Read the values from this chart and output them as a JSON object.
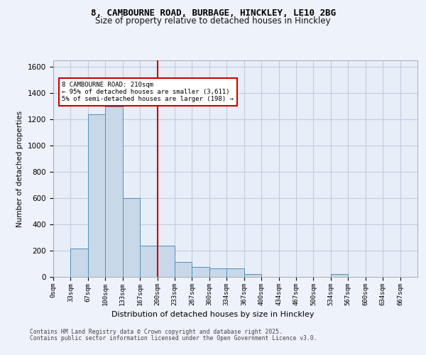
{
  "title_line1": "8, CAMBOURNE ROAD, BURBAGE, HINCKLEY, LE10 2BG",
  "title_line2": "Size of property relative to detached houses in Hinckley",
  "xlabel": "Distribution of detached houses by size in Hinckley",
  "ylabel": "Number of detached properties",
  "bin_labels": [
    "0sqm",
    "33sqm",
    "67sqm",
    "100sqm",
    "133sqm",
    "167sqm",
    "200sqm",
    "233sqm",
    "267sqm",
    "300sqm",
    "334sqm",
    "367sqm",
    "400sqm",
    "434sqm",
    "467sqm",
    "500sqm",
    "534sqm",
    "567sqm",
    "600sqm",
    "634sqm",
    "667sqm"
  ],
  "bar_values": [
    0,
    215,
    1240,
    1300,
    600,
    240,
    240,
    115,
    75,
    65,
    65,
    20,
    0,
    0,
    0,
    0,
    20,
    0,
    0,
    0,
    0
  ],
  "bar_color": "#c8d8e8",
  "bar_edge_color": "#5090b8",
  "vline_x": 6,
  "vline_color": "#cc0000",
  "annotation_text": "8 CAMBOURNE ROAD: 210sqm\n← 95% of detached houses are smaller (3,611)\n5% of semi-detached houses are larger (198) →",
  "annotation_box_color": "#cc0000",
  "annotation_text_color": "#000000",
  "ylim": [
    0,
    1650
  ],
  "yticks": [
    0,
    200,
    400,
    600,
    800,
    1000,
    1200,
    1400,
    1600
  ],
  "grid_color": "#c0cce0",
  "background_color": "#e8eef8",
  "fig_background_color": "#eef2fa",
  "footer_line1": "Contains HM Land Registry data © Crown copyright and database right 2025.",
  "footer_line2": "Contains public sector information licensed under the Open Government Licence v3.0."
}
